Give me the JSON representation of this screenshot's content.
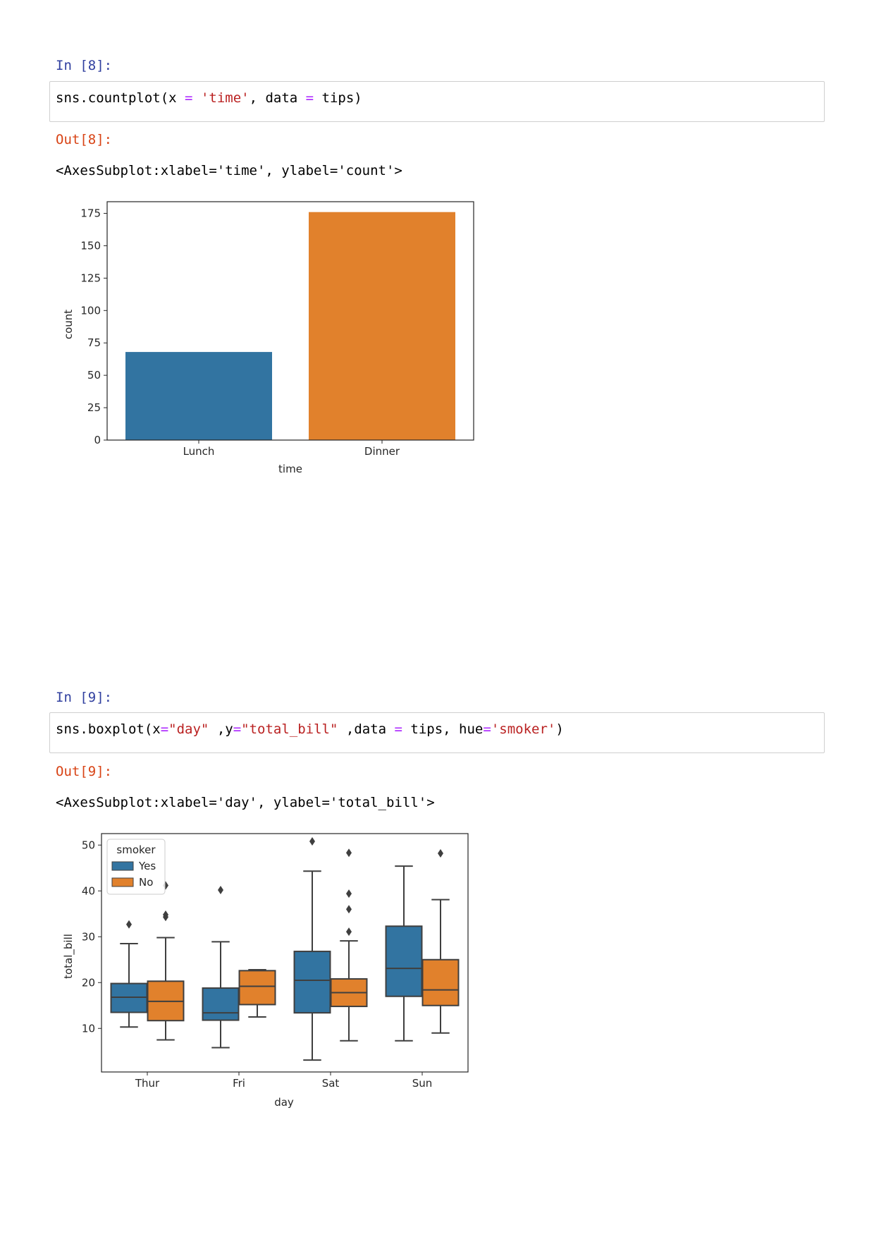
{
  "cell8": {
    "in_prompt": "In [8]:",
    "code": {
      "t1": "sns.countplot(x ",
      "t2": "=",
      "t3": " ",
      "t4": "'time'",
      "t5": ", data ",
      "t6": "=",
      "t7": " tips)"
    },
    "out_prompt": "Out[8]:",
    "repr": "<AxesSubplot:xlabel='time', ylabel='count'>"
  },
  "cell9": {
    "in_prompt": "In [9]:",
    "code": {
      "t1": "sns.boxplot(x",
      "t2": "=",
      "t3": "\"day\"",
      "t4": " ,y",
      "t5": "=",
      "t6": "\"total_bill\"",
      "t7": " ,data ",
      "t8": "=",
      "t9": " tips, hue",
      "t10": "=",
      "t11": "'smoker'",
      "t12": ")"
    },
    "out_prompt": "Out[9]:",
    "repr": "<AxesSubplot:xlabel='day', ylabel='total_bill'>"
  },
  "colors": {
    "blue": "#3274a1",
    "orange": "#e1812c",
    "box_line": "#3f3f3f",
    "in_prompt": "#303f9f",
    "out_prompt": "#d84315"
  },
  "chart_data": [
    {
      "type": "bar",
      "xlabel": "time",
      "ylabel": "count",
      "categories": [
        "Lunch",
        "Dinner"
      ],
      "values": [
        68,
        176
      ],
      "ylim": [
        0,
        184
      ],
      "yticks": [
        "0",
        "25",
        "50",
        "75",
        "100",
        "125",
        "150",
        "175"
      ],
      "grid": false
    },
    {
      "type": "box",
      "xlabel": "day",
      "ylabel": "total_bill",
      "categories": [
        "Thur",
        "Fri",
        "Sat",
        "Sun"
      ],
      "ylim": [
        0.5,
        52.5
      ],
      "yticks": [
        "10",
        "20",
        "30",
        "40",
        "50"
      ],
      "legend": {
        "title": "smoker",
        "placement": "top-left",
        "entries": [
          "Yes",
          "No"
        ]
      },
      "series": [
        {
          "name": "Yes",
          "boxes": [
            {
              "whislo": 10.3,
              "q1": 13.5,
              "med": 16.8,
              "q3": 19.8,
              "whishi": 28.5,
              "fliers": [
                32.7
              ]
            },
            {
              "whislo": 5.8,
              "q1": 11.8,
              "med": 13.4,
              "q3": 18.8,
              "whishi": 28.9,
              "fliers": [
                40.2
              ]
            },
            {
              "whislo": 3.1,
              "q1": 13.4,
              "med": 20.5,
              "q3": 26.8,
              "whishi": 44.3,
              "fliers": [
                50.8
              ]
            },
            {
              "whislo": 7.3,
              "q1": 17.0,
              "med": 23.1,
              "q3": 32.3,
              "whishi": 45.4,
              "fliers": []
            }
          ]
        },
        {
          "name": "No",
          "boxes": [
            {
              "whislo": 7.5,
              "q1": 11.7,
              "med": 15.9,
              "q3": 20.3,
              "whishi": 29.8,
              "fliers": [
                34.3,
                34.8,
                41.2
              ]
            },
            {
              "whislo": 12.5,
              "q1": 15.2,
              "med": 19.2,
              "q3": 22.6,
              "whishi": 22.8,
              "fliers": []
            },
            {
              "whislo": 7.3,
              "q1": 14.8,
              "med": 17.8,
              "q3": 20.8,
              "whishi": 29.1,
              "fliers": [
                31.1,
                36.0,
                39.4,
                48.3
              ]
            },
            {
              "whislo": 9.0,
              "q1": 15.0,
              "med": 18.4,
              "q3": 25.0,
              "whishi": 38.1,
              "fliers": [
                48.2
              ]
            }
          ]
        }
      ]
    }
  ]
}
